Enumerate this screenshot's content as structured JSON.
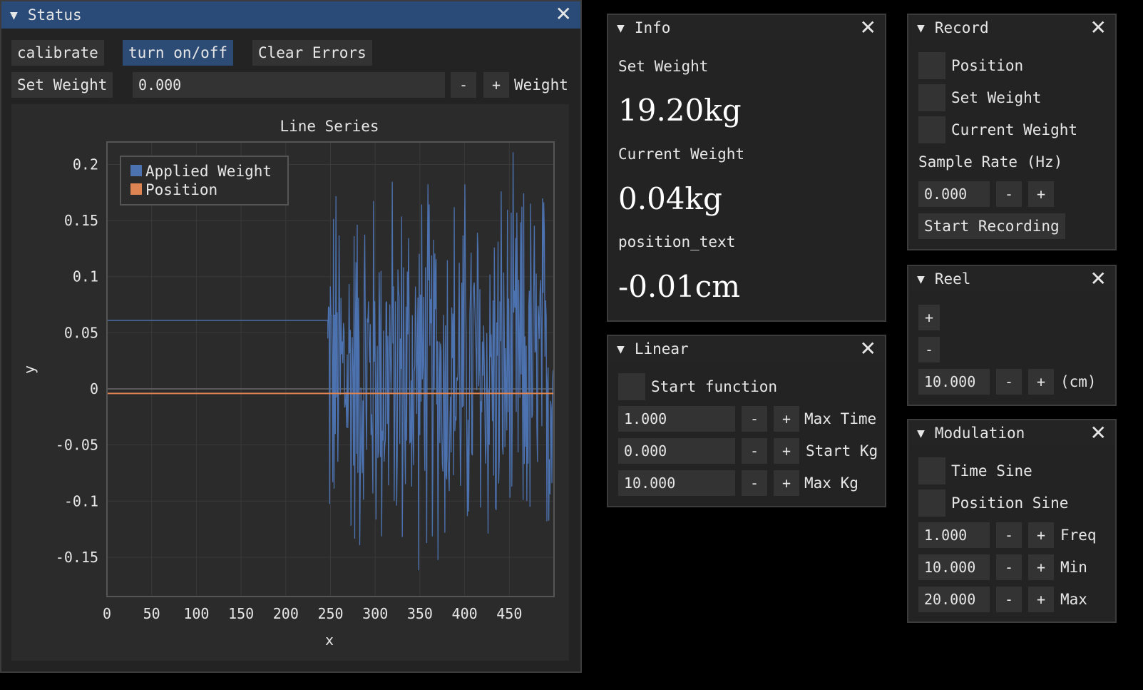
{
  "status": {
    "title": "Status",
    "calibrate": "calibrate",
    "turn_on_off": "turn on/off",
    "clear_errors": "Clear Errors",
    "set_weight_button": "Set Weight",
    "weight_value": "0.000",
    "minus": "-",
    "plus": "+",
    "weight_label": "Weight"
  },
  "info": {
    "title": "Info",
    "set_weight_label": "Set Weight",
    "set_weight_value": "19.20kg",
    "current_weight_label": "Current Weight",
    "current_weight_value": "0.04kg",
    "position_label": "position_text",
    "position_value": "-0.01cm"
  },
  "linear": {
    "title": "Linear",
    "start_function": "Start function",
    "rows": [
      {
        "value": "1.000",
        "label": "Max Time"
      },
      {
        "value": "0.000",
        "label": "Start Kg"
      },
      {
        "value": "10.000",
        "label": "Max Kg"
      }
    ],
    "minus": "-",
    "plus": "+"
  },
  "record": {
    "title": "Record",
    "position": "Position",
    "set_weight": "Set Weight",
    "current_weight": "Current Weight",
    "sample_rate_label": "Sample Rate (Hz)",
    "sample_rate_value": "0.000",
    "minus": "-",
    "plus": "+",
    "start_recording": "Start Recording"
  },
  "reel": {
    "title": "Reel",
    "plus": "+",
    "minus": "-",
    "value": "10.000",
    "unit": "(cm)"
  },
  "modulation": {
    "title": "Modulation",
    "time_sine": "Time Sine",
    "position_sine": "Position Sine",
    "rows": [
      {
        "value": "1.000",
        "label": "Freq"
      },
      {
        "value": "10.000",
        "label": "Min"
      },
      {
        "value": "20.000",
        "label": "Max"
      }
    ],
    "minus": "-",
    "plus": "+"
  },
  "chart_data": {
    "type": "line",
    "title": "Line Series",
    "xlabel": "x",
    "ylabel": "y",
    "xlim": [
      0,
      500
    ],
    "ylim": [
      -0.185,
      0.22
    ],
    "xticks": [
      0,
      50,
      100,
      150,
      200,
      250,
      300,
      350,
      400,
      450
    ],
    "xtick_labels": [
      "0",
      "50",
      "100",
      "150",
      "200",
      "250",
      "300",
      "350",
      "400",
      "450"
    ],
    "yticks": [
      0.2,
      0.15,
      0.1,
      0.05,
      0,
      -0.05,
      -0.1,
      -0.15
    ],
    "ytick_labels": [
      "0.2",
      "0.15",
      "0.1",
      "0.05",
      "0",
      "-0.05",
      "-0.1",
      "-0.15"
    ],
    "grid": true,
    "legend": "top-left",
    "series": [
      {
        "name": "Applied Weight",
        "color": "#4c72b0",
        "flat_value": 0.061,
        "flat_until": 247,
        "noise_start": 247,
        "noise_end": 500,
        "noise_min": -0.18,
        "noise_max": 0.22
      },
      {
        "name": "Position",
        "color": "#dd8452",
        "values": [
          [
            0,
            -0.004
          ],
          [
            500,
            -0.004
          ]
        ]
      }
    ]
  }
}
